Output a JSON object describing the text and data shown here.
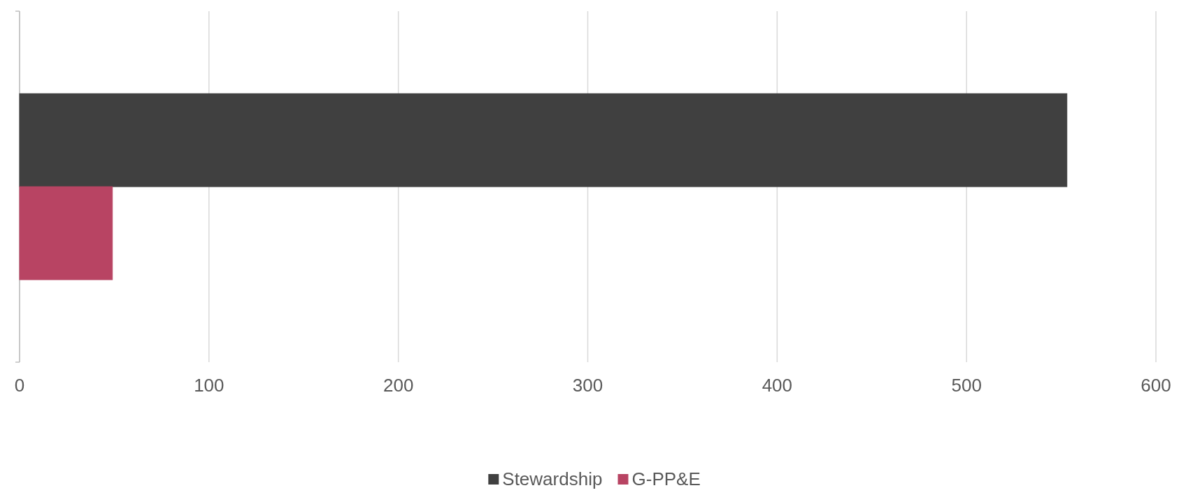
{
  "chart_data": {
    "type": "bar",
    "orientation": "horizontal",
    "categories": [
      null
    ],
    "series": [
      {
        "name": "Stewardship",
        "color": "#404040",
        "values": [
          553
        ]
      },
      {
        "name": "G-PP&E",
        "color": "#b84463",
        "values": [
          49
        ]
      }
    ],
    "xlim": [
      0,
      600
    ],
    "xticks": [
      0,
      100,
      200,
      300,
      400,
      500,
      600
    ],
    "grid": "x",
    "legend": "bottom"
  }
}
